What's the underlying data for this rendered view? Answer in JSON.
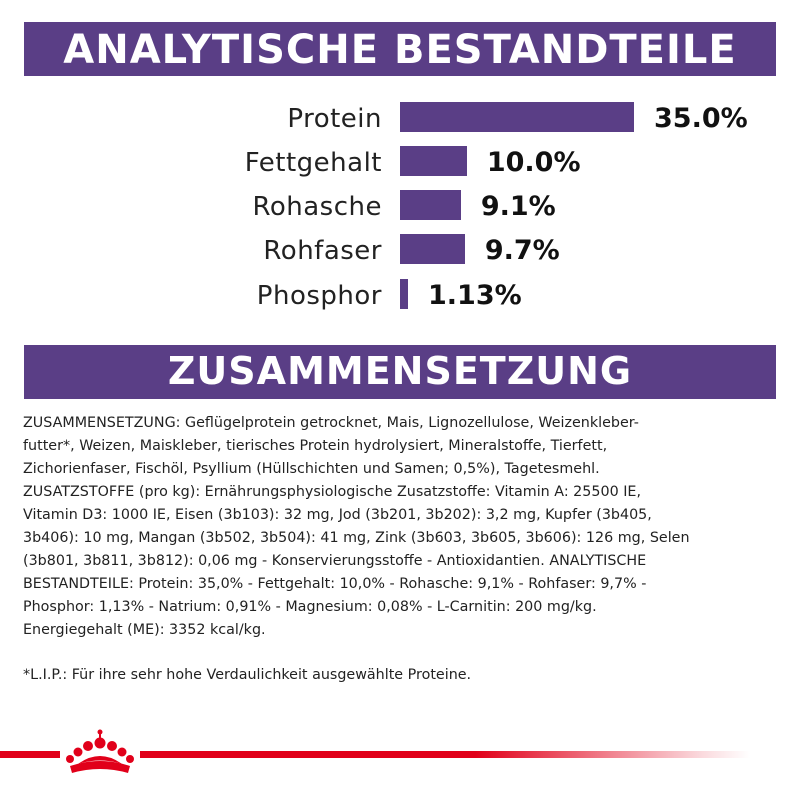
{
  "banner_analytics": "ANALYTISCHE BESTANDTEILE",
  "banner_composition": "ZUSAMMENSETZUNG",
  "nutrients": [
    {
      "label": "Protein",
      "value_text": "35.0%",
      "percent": 35.0
    },
    {
      "label": "Fettgehalt",
      "value_text": "10.0%",
      "percent": 10.0
    },
    {
      "label": "Rohasche",
      "value_text": "9.1%",
      "percent": 9.1
    },
    {
      "label": "Rohfaser",
      "value_text": "9.7%",
      "percent": 9.7
    },
    {
      "label": "Phosphor",
      "value_text": "1.13%",
      "percent": 1.13
    }
  ],
  "composition_text": "ZUSAMMENSETZUNG: Geflügelprotein getrocknet, Mais, Lignozellulose, Weizenkleber-\nfutter*, Weizen, Maiskleber, tierisches Protein hydrolysiert, Mineralstoffe, Tierfett,\nZichorienfaser, Fischöl, Psyllium (Hüllschichten und Samen; 0,5%), Tagetesmehl.\nZUSATZSTOFFE (pro kg): Ernährungsphysiologische Zusatzstoffe: Vitamin A: 25500 IE,\nVitamin D3: 1000 IE, Eisen (3b103): 32 mg, Jod (3b201, 3b202): 3,2 mg, Kupfer (3b405,\n3b406): 10 mg, Mangan (3b502, 3b504): 41 mg, Zink (3b603, 3b605, 3b606): 126 mg, Selen\n(3b801, 3b811, 3b812): 0,06 mg - Konservierungsstoffe - Antioxidantien. ANALYTISCHE\nBESTANDTEILE: Protein: 35,0% - Fettgehalt: 10,0% - Rohasche: 9,1% - Rohfaser: 9,7% -\nPhosphor: 1,13% - Natrium: 0,91% - Magnesium: 0,08% - L-Carnitin: 200 mg/kg.\nEnergiegehalt (ME): 3352 kcal/kg.",
  "footnote": "*L.I.P.: Für ihre sehr hohe Verdaulichkeit ausgewählte Proteine.",
  "colors": {
    "banner": "#5a3e86",
    "bar": "#5a3e86",
    "brand_red": "#e1001a"
  },
  "logo_icon": "crown-icon"
}
